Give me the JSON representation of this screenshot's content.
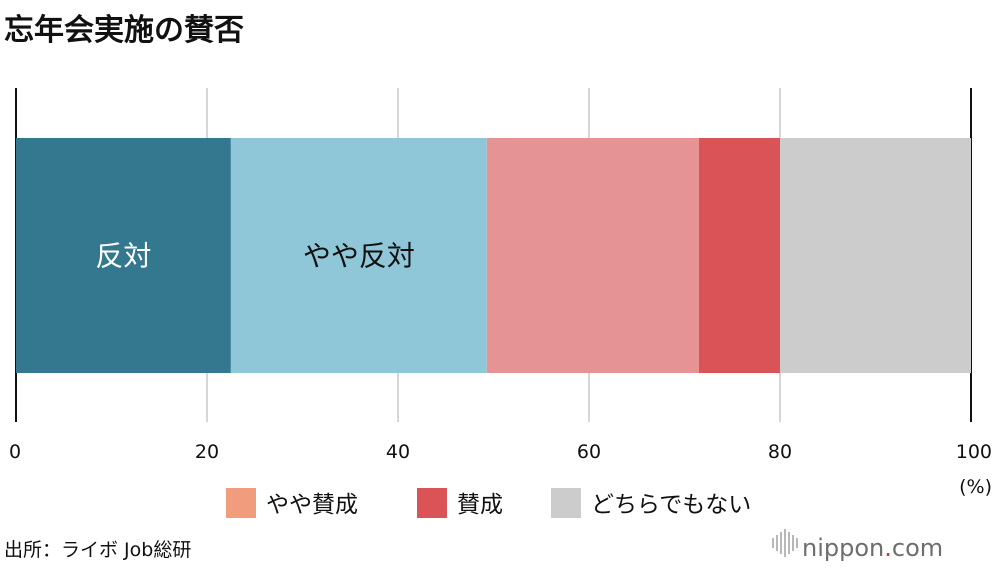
{
  "chart_data": {
    "type": "bar",
    "orientation": "horizontal",
    "stacked": true,
    "title": "忘年会実施の賛否",
    "xlim": [
      0,
      100
    ],
    "x_ticks": [
      "0",
      "20",
      "40",
      "60",
      "80",
      "100"
    ],
    "x_unit": "(%)",
    "grid": true,
    "series": [
      {
        "name": "反対",
        "value": 22.5,
        "color": "#33788f",
        "label": "反対",
        "label_color": "#ffffff"
      },
      {
        "name": "やや反対",
        "value": 26.8,
        "color": "#8fc7d9",
        "label": "やや反対",
        "label_color": "#111111"
      },
      {
        "name": "やや賛成",
        "value": 22.2,
        "color": "#e59394",
        "label": "",
        "label_color": "#111111"
      },
      {
        "name": "賛成",
        "value": 8.5,
        "color": "#da5357",
        "label": "",
        "label_color": "#111111"
      },
      {
        "name": "どちらでもない",
        "value": 20.0,
        "color": "#cccccc",
        "label": "",
        "label_color": "#111111"
      }
    ],
    "legend": [
      {
        "label": "やや賛成",
        "color": "#f29c7e"
      },
      {
        "label": "賛成",
        "color": "#da5357"
      },
      {
        "label": "どちらでもない",
        "color": "#cccccc"
      }
    ],
    "legend_position": "bottom"
  },
  "source_text": "出所：ライボ Job総研",
  "brand": {
    "name": "nippon",
    "dot": ".",
    "tld": "com"
  }
}
